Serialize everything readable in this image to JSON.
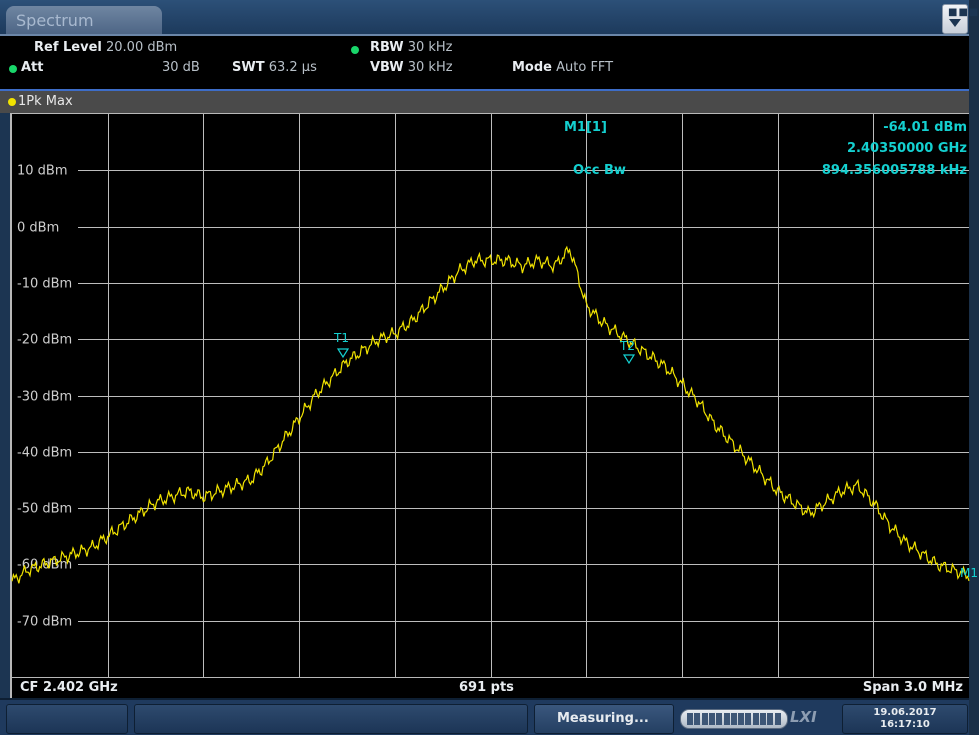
{
  "window": {
    "tab_label": "Spectrum",
    "menu_icon": "menu-dropdown-icon"
  },
  "settings": {
    "ref_level_label": "Ref Level",
    "ref_level_value": "20.00 dBm",
    "att_label": "Att",
    "att_value": "30 dB",
    "swt_label": "SWT",
    "swt_value": "63.2 µs",
    "rbw_label": "RBW",
    "rbw_value": "30 kHz",
    "vbw_label": "VBW",
    "vbw_value": "30 kHz",
    "mode_label": "Mode",
    "mode_value": "Auto FFT",
    "indicator_color": "#19d66a"
  },
  "trace": {
    "label": "1Pk Max",
    "color": "#f1e300"
  },
  "marker": {
    "name": "M1[1]",
    "level": "-64.01 dBm",
    "frequency": "2.40350000 GHz",
    "occ_bw_label": "Occ Bw",
    "occ_bw_value": "894.356005788 kHz",
    "t1_label": "T1",
    "t2_label": "T2",
    "m1_label": "M1",
    "color": "#14d0d0"
  },
  "plot": {
    "y_labels": [
      "10 dBm",
      "0 dBm",
      "-10 dBm",
      "-20 dBm",
      "-30 dBm",
      "-40 dBm",
      "-50 dBm",
      "-60 dBm",
      "-70 dBm"
    ],
    "center_freq": "CF 2.402 GHz",
    "points": "691 pts",
    "span": "Span 3.0 MHz"
  },
  "chart_data": {
    "type": "line",
    "xlabel": "",
    "ylabel": "",
    "x_unit": "MHz offset from CF",
    "xlim": [
      -1.5,
      1.5
    ],
    "ylim": [
      -80,
      20
    ],
    "y_ticks": [
      10,
      0,
      -10,
      -20,
      -30,
      -40,
      -50,
      -60,
      -70
    ],
    "grid": true,
    "series": [
      {
        "x": [
          -1.5,
          -1.45,
          -1.4,
          -1.35,
          -1.3,
          -1.25,
          -1.2,
          -1.15,
          -1.1,
          -1.05,
          -1.0,
          -0.95,
          -0.9,
          -0.85,
          -0.8,
          -0.75,
          -0.7,
          -0.65,
          -0.6,
          -0.55,
          -0.5,
          -0.45,
          -0.4,
          -0.35,
          -0.3,
          -0.25,
          -0.2,
          -0.15,
          -0.1,
          -0.05,
          0.0,
          0.05,
          0.1,
          0.15,
          0.2,
          0.25,
          0.3,
          0.35,
          0.4,
          0.45,
          0.5,
          0.55,
          0.6,
          0.65,
          0.7,
          0.75,
          0.8,
          0.85,
          0.9,
          0.95,
          1.0,
          1.05,
          1.1,
          1.15,
          1.2,
          1.25,
          1.3,
          1.35,
          1.4,
          1.45,
          1.5
        ],
        "y": [
          -63,
          -61,
          -60,
          -59,
          -58,
          -57,
          -55,
          -53,
          -51,
          -49,
          -48,
          -47,
          -48,
          -47,
          -46,
          -45,
          -42,
          -38,
          -34,
          -30,
          -27,
          -24,
          -22,
          -20,
          -19,
          -17,
          -14,
          -11,
          -8,
          -6,
          -6,
          -6,
          -7,
          -6,
          -7,
          -4,
          -14,
          -17,
          -19,
          -21,
          -23,
          -25,
          -28,
          -31,
          -35,
          -38,
          -41,
          -44,
          -47,
          -49,
          -51,
          -49,
          -47,
          -46,
          -49,
          -53,
          -56,
          -58,
          -60,
          -61,
          -62
        ]
      }
    ]
  },
  "status": {
    "message": "Measuring...",
    "progress": 1.0,
    "lxi_label": "LXI",
    "date": "19.06.2017",
    "time": "16:17:10"
  }
}
